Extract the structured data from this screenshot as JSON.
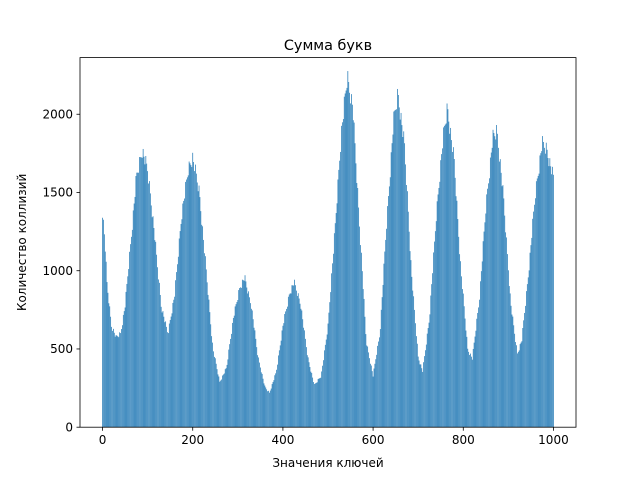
{
  "chart_data": {
    "type": "bar",
    "title": "Сумма букв",
    "xlabel": "Значения ключей",
    "ylabel": "Количество коллизий",
    "xlim": [
      -50,
      1050
    ],
    "ylim": [
      0,
      2362
    ],
    "xticks": [
      0,
      200,
      400,
      600,
      800,
      1000
    ],
    "yticks": [
      0,
      500,
      1000,
      1500,
      2000
    ],
    "grid": false,
    "bar_color": "#1f77b4",
    "anchors": [
      {
        "x": 0,
        "y": 1380
      },
      {
        "x": 5,
        "y": 1200
      },
      {
        "x": 10,
        "y": 920
      },
      {
        "x": 20,
        "y": 650
      },
      {
        "x": 30,
        "y": 575
      },
      {
        "x": 40,
        "y": 600
      },
      {
        "x": 50,
        "y": 780
      },
      {
        "x": 60,
        "y": 1100
      },
      {
        "x": 75,
        "y": 1600
      },
      {
        "x": 88,
        "y": 1775
      },
      {
        "x": 100,
        "y": 1650
      },
      {
        "x": 115,
        "y": 1250
      },
      {
        "x": 130,
        "y": 780
      },
      {
        "x": 145,
        "y": 600
      },
      {
        "x": 160,
        "y": 850
      },
      {
        "x": 175,
        "y": 1350
      },
      {
        "x": 190,
        "y": 1650
      },
      {
        "x": 200,
        "y": 1730
      },
      {
        "x": 215,
        "y": 1500
      },
      {
        "x": 230,
        "y": 1000
      },
      {
        "x": 245,
        "y": 500
      },
      {
        "x": 260,
        "y": 290
      },
      {
        "x": 275,
        "y": 380
      },
      {
        "x": 290,
        "y": 700
      },
      {
        "x": 305,
        "y": 900
      },
      {
        "x": 315,
        "y": 960
      },
      {
        "x": 330,
        "y": 780
      },
      {
        "x": 345,
        "y": 450
      },
      {
        "x": 360,
        "y": 260
      },
      {
        "x": 370,
        "y": 220
      },
      {
        "x": 385,
        "y": 350
      },
      {
        "x": 400,
        "y": 650
      },
      {
        "x": 415,
        "y": 860
      },
      {
        "x": 425,
        "y": 930
      },
      {
        "x": 440,
        "y": 780
      },
      {
        "x": 455,
        "y": 450
      },
      {
        "x": 470,
        "y": 270
      },
      {
        "x": 485,
        "y": 330
      },
      {
        "x": 500,
        "y": 650
      },
      {
        "x": 515,
        "y": 1250
      },
      {
        "x": 530,
        "y": 1900
      },
      {
        "x": 543,
        "y": 2250
      },
      {
        "x": 555,
        "y": 2050
      },
      {
        "x": 570,
        "y": 1300
      },
      {
        "x": 585,
        "y": 550
      },
      {
        "x": 600,
        "y": 330
      },
      {
        "x": 615,
        "y": 600
      },
      {
        "x": 630,
        "y": 1300
      },
      {
        "x": 645,
        "y": 1950
      },
      {
        "x": 655,
        "y": 2140
      },
      {
        "x": 670,
        "y": 1800
      },
      {
        "x": 685,
        "y": 1000
      },
      {
        "x": 700,
        "y": 450
      },
      {
        "x": 710,
        "y": 360
      },
      {
        "x": 725,
        "y": 700
      },
      {
        "x": 740,
        "y": 1350
      },
      {
        "x": 755,
        "y": 1850
      },
      {
        "x": 765,
        "y": 2050
      },
      {
        "x": 780,
        "y": 1700
      },
      {
        "x": 795,
        "y": 1000
      },
      {
        "x": 810,
        "y": 500
      },
      {
        "x": 820,
        "y": 440
      },
      {
        "x": 835,
        "y": 800
      },
      {
        "x": 850,
        "y": 1400
      },
      {
        "x": 865,
        "y": 1850
      },
      {
        "x": 875,
        "y": 1900
      },
      {
        "x": 890,
        "y": 1450
      },
      {
        "x": 905,
        "y": 800
      },
      {
        "x": 920,
        "y": 470
      },
      {
        "x": 930,
        "y": 560
      },
      {
        "x": 945,
        "y": 1000
      },
      {
        "x": 960,
        "y": 1500
      },
      {
        "x": 975,
        "y": 1820
      },
      {
        "x": 985,
        "y": 1780
      },
      {
        "x": 1000,
        "y": 1600
      }
    ]
  }
}
